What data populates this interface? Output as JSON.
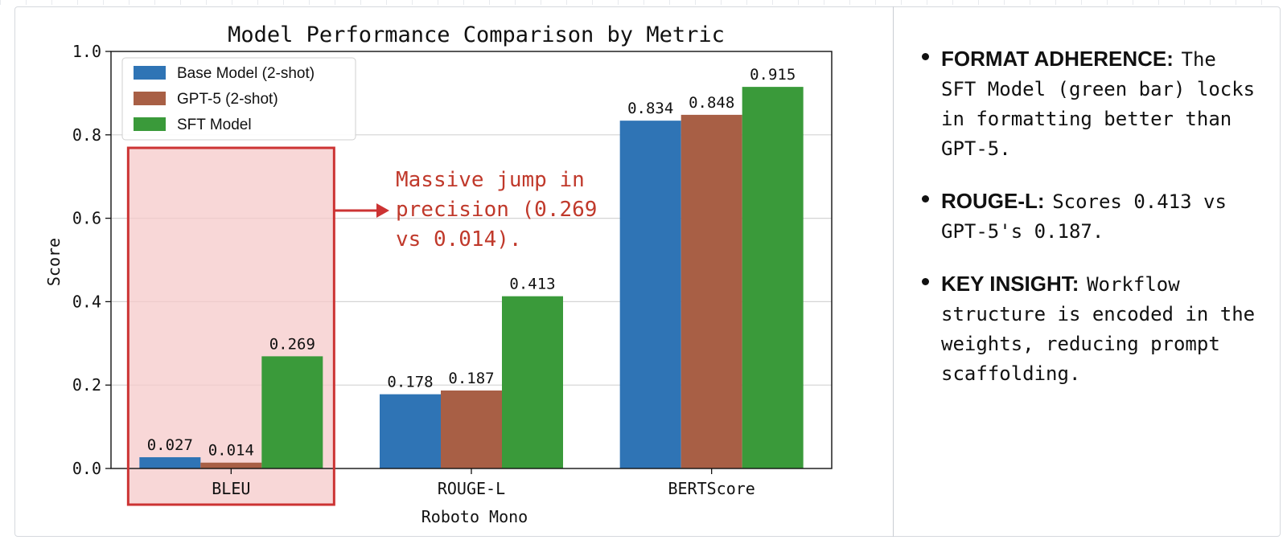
{
  "chart_data": {
    "type": "bar",
    "title": "Model Performance Comparison by Metric",
    "xlabel": "Roboto Mono",
    "ylabel": "Score",
    "ylim": [
      0,
      1.0
    ],
    "yticks": [
      "0.0",
      "0.2",
      "0.4",
      "0.6",
      "0.8",
      "1.0"
    ],
    "categories": [
      "BLEU",
      "ROUGE-L",
      "BERTScore"
    ],
    "grid": "horizontal",
    "legend_position": "upper-left",
    "series": [
      {
        "name": "Base Model (2-shot)",
        "color": "#2f74b5",
        "values": [
          0.027,
          0.178,
          0.834
        ],
        "labels": [
          "0.027",
          "0.178",
          "0.834"
        ]
      },
      {
        "name": "GPT-5 (2-shot)",
        "color": "#a85f45",
        "values": [
          0.014,
          0.187,
          0.848
        ],
        "labels": [
          "0.014",
          "0.187",
          "0.848"
        ]
      },
      {
        "name": "SFT Model",
        "color": "#3a9a3a",
        "values": [
          0.269,
          0.413,
          0.915
        ],
        "labels": [
          "0.269",
          "0.413",
          "0.915"
        ]
      }
    ],
    "highlight": {
      "category": "BLEU",
      "color": "#cc3333"
    },
    "annotation": {
      "lines": [
        "Massive jump in",
        "precision (0.269",
        "vs 0.014)."
      ],
      "color": "#c0392b"
    }
  },
  "notes": [
    {
      "heading": "FORMAT ADHERENCE:",
      "body": "The SFT Model (green bar) locks in formatting better than GPT-5."
    },
    {
      "heading": "ROUGE-L:",
      "body": "Scores 0.413 vs GPT-5's 0.187."
    },
    {
      "heading": "KEY INSIGHT:",
      "body": "Workflow structure is encoded in the weights, reducing prompt scaffolding."
    }
  ]
}
